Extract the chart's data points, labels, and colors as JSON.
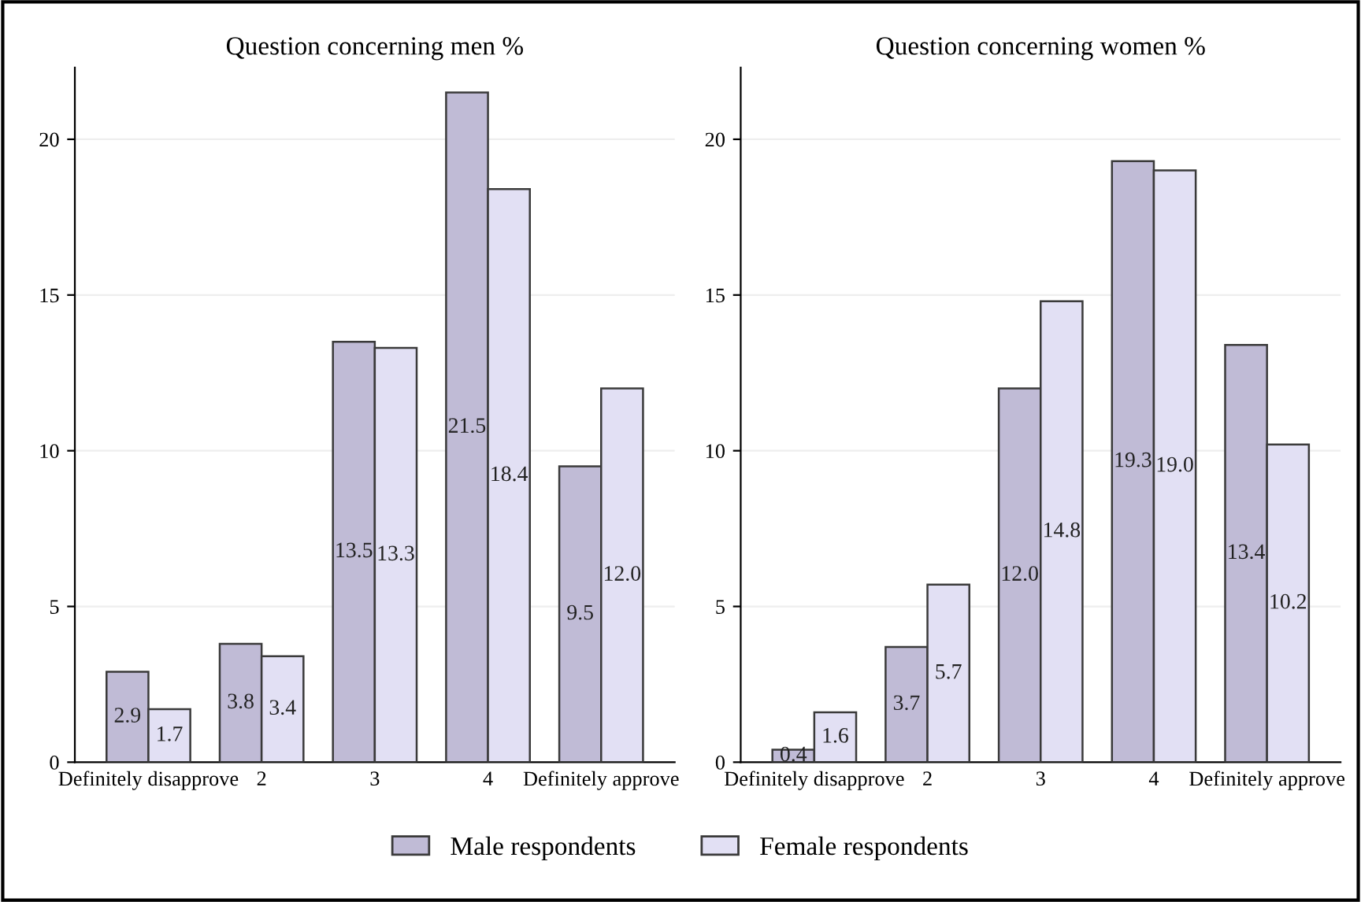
{
  "chart_data": [
    {
      "type": "bar",
      "title": "Question concerning men %",
      "categories": [
        "Definitely disapprove",
        "2",
        "3",
        "4",
        "Definitely approve"
      ],
      "series": [
        {
          "name": "Male respondents",
          "color": "#c0bbd6",
          "values": [
            2.9,
            3.8,
            13.5,
            21.5,
            9.5
          ],
          "value_labels": [
            "2.9",
            "3.8",
            "13.5",
            "21.5",
            "9.5"
          ]
        },
        {
          "name": "Female respondents",
          "color": "#e2e0f4",
          "values": [
            1.7,
            3.4,
            13.3,
            18.4,
            12.0
          ],
          "value_labels": [
            "1.7",
            "3.4",
            "13.3",
            "18.4",
            "12.0"
          ]
        }
      ],
      "ylim": [
        0,
        22.3
      ],
      "yticks": [
        0,
        5,
        10,
        15,
        20
      ],
      "grid": "y",
      "legend": "bottom"
    },
    {
      "type": "bar",
      "title": "Question concerning women %",
      "categories": [
        "Definitely disapprove",
        "2",
        "3",
        "4",
        "Definitely approve"
      ],
      "series": [
        {
          "color": "#c0bbd6",
          "values": [
            0.4,
            3.7,
            12.0,
            19.3,
            13.4
          ],
          "value_labels": [
            "0.4",
            "3.7",
            "12.0",
            "19.3",
            "13.4"
          ]
        },
        {
          "color": "#e2e0f4",
          "values": [
            1.6,
            5.7,
            14.8,
            19.0,
            10.2
          ],
          "value_labels": [
            "1.6",
            "5.7",
            "14.8",
            "19.0",
            "10.2"
          ]
        }
      ],
      "ylim": [
        0,
        22.3
      ],
      "yticks": [
        0,
        5,
        10,
        15,
        20
      ],
      "grid": "y"
    }
  ]
}
